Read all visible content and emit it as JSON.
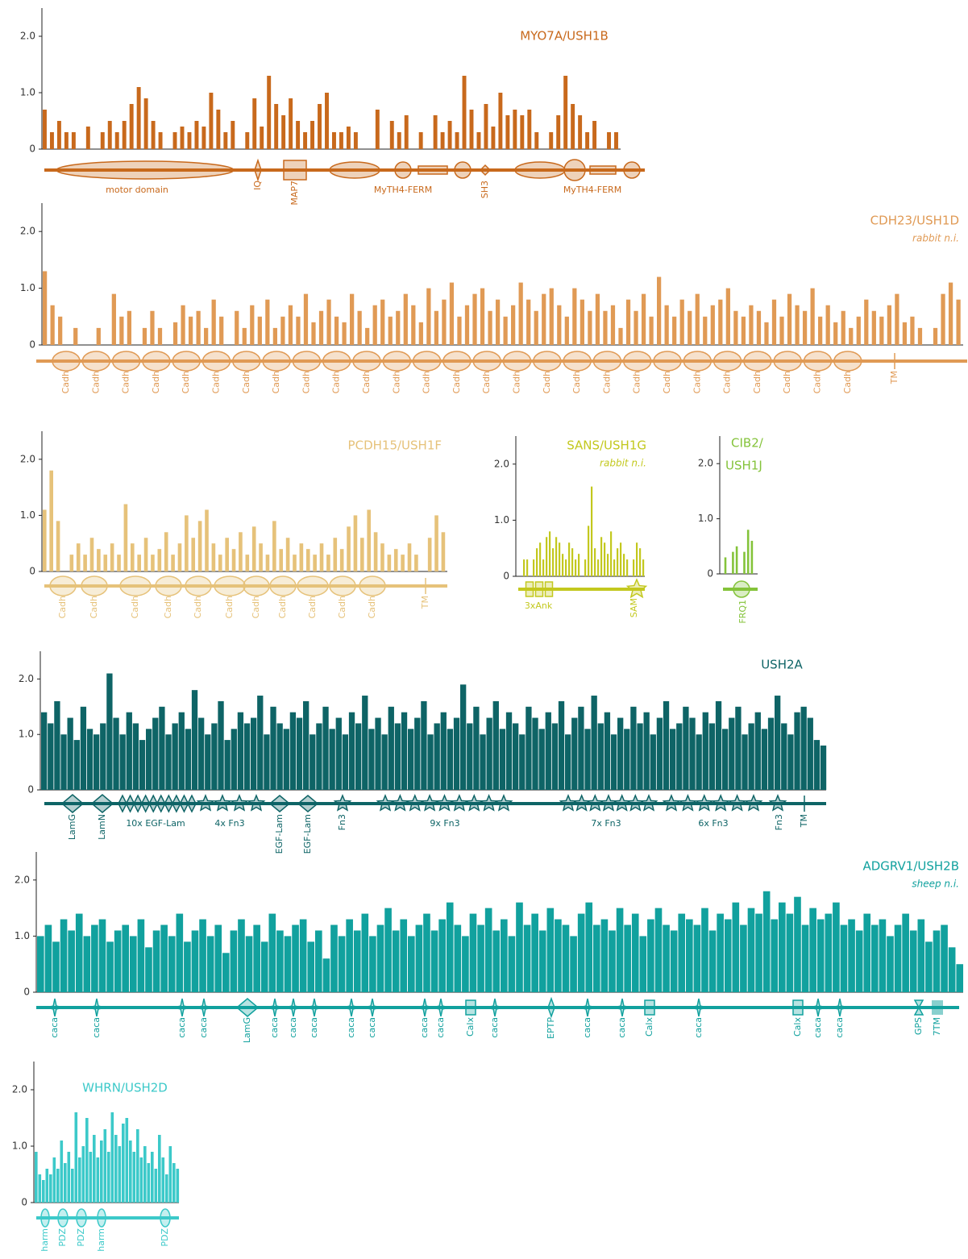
{
  "chart_data": [
    {
      "type": "bar",
      "title": "MYO7A/USH1B",
      "color": "#c8691c",
      "ylim": [
        0,
        2.5
      ],
      "yticks": [
        0,
        {
          "value": 1,
          "label": "1.0"
        },
        {
          "value": 2,
          "label": "2.0"
        }
      ],
      "values": [
        0.7,
        0.3,
        0.5,
        0.3,
        0.3,
        0,
        0.4,
        0,
        0.3,
        0.5,
        0.3,
        0.5,
        0.8,
        1.1,
        0.9,
        0.5,
        0.3,
        0,
        0.3,
        0.4,
        0.3,
        0.5,
        0.4,
        1.0,
        0.7,
        0.3,
        0.5,
        0,
        0.3,
        0.9,
        0.4,
        1.3,
        0.8,
        0.6,
        0.9,
        0.5,
        0.3,
        0.5,
        0.8,
        1.0,
        0.3,
        0.3,
        0.4,
        0.3,
        0,
        0,
        0.7,
        0,
        0.5,
        0.3,
        0.6,
        0,
        0.3,
        0,
        0.6,
        0.3,
        0.5,
        0.3,
        1.3,
        0.7,
        0.3,
        0.8,
        0.4,
        1.0,
        0.6,
        0.7,
        0.6,
        0.7,
        0.3,
        0,
        0.3,
        0.6,
        1.3,
        0.8,
        0.6,
        0.3,
        0.5,
        0,
        0.3,
        0.3
      ],
      "domains": [
        "motor domain",
        "IQ",
        "MAP7",
        "MyTH4-FERM",
        "SH3",
        "MyTH4-FERM"
      ]
    },
    {
      "type": "bar",
      "title": "CDH23/USH1D",
      "subtitle": "rabbit n.i.",
      "color": "#e09a55",
      "ylim": [
        0,
        2.5
      ],
      "yticks": [
        0,
        {
          "value": 1,
          "label": "1.0"
        },
        {
          "value": 2,
          "label": "2.0"
        }
      ],
      "values": [
        1.3,
        0.7,
        0.5,
        0,
        0.3,
        0,
        0,
        0.3,
        0,
        0.9,
        0.5,
        0.6,
        0,
        0.3,
        0.6,
        0.3,
        0,
        0.4,
        0.7,
        0.5,
        0.6,
        0.3,
        0.8,
        0.5,
        0,
        0.6,
        0.3,
        0.7,
        0.5,
        0.8,
        0.3,
        0.5,
        0.7,
        0.5,
        0.9,
        0.4,
        0.6,
        0.8,
        0.5,
        0.4,
        0.9,
        0.6,
        0.3,
        0.7,
        0.8,
        0.5,
        0.6,
        0.9,
        0.7,
        0.4,
        1.0,
        0.6,
        0.8,
        1.1,
        0.5,
        0.7,
        0.9,
        1.0,
        0.6,
        0.8,
        0.5,
        0.7,
        1.1,
        0.8,
        0.6,
        0.9,
        1.0,
        0.7,
        0.5,
        1.0,
        0.8,
        0.6,
        0.9,
        0.6,
        0.7,
        0.3,
        0.8,
        0.6,
        0.9,
        0.5,
        1.2,
        0.7,
        0.5,
        0.8,
        0.6,
        0.9,
        0.5,
        0.7,
        0.8,
        1.0,
        0.6,
        0.5,
        0.7,
        0.6,
        0.4,
        0.8,
        0.5,
        0.9,
        0.7,
        0.6,
        1.0,
        0.5,
        0.7,
        0.4,
        0.6,
        0.3,
        0.5,
        0.8,
        0.6,
        0.5,
        0.7,
        0.9,
        0.4,
        0.5,
        0.3,
        0,
        0.3,
        0.9,
        1.1,
        0.8
      ],
      "domains": [
        "Cadh",
        "Cadh",
        "Cadh",
        "Cadh",
        "Cadh",
        "Cadh",
        "Cadh",
        "Cadh",
        "Cadh",
        "Cadh",
        "Cadh",
        "Cadh",
        "Cadh",
        "Cadh",
        "Cadh",
        "Cadh",
        "Cadh",
        "Cadh",
        "Cadh",
        "Cadh",
        "Cadh",
        "Cadh",
        "Cadh",
        "Cadh",
        "Cadh",
        "Cadh",
        "Cadh",
        "TM"
      ]
    },
    {
      "type": "bar",
      "title": "PCDH15/USH1F",
      "color": "#e6c27a",
      "ylim": [
        0,
        2.5
      ],
      "yticks": [
        0,
        {
          "value": 1,
          "label": "1.0"
        },
        {
          "value": 2,
          "label": "2.0"
        }
      ],
      "values": [
        1.1,
        1.8,
        0.9,
        0,
        0.3,
        0.5,
        0.3,
        0.6,
        0.4,
        0.3,
        0.5,
        0.3,
        1.2,
        0.5,
        0.3,
        0.6,
        0.3,
        0.4,
        0.7,
        0.3,
        0.5,
        1.0,
        0.6,
        0.9,
        1.1,
        0.5,
        0.3,
        0.6,
        0.4,
        0.7,
        0.3,
        0.8,
        0.5,
        0.3,
        0.9,
        0.4,
        0.6,
        0.3,
        0.5,
        0.4,
        0.3,
        0.5,
        0.3,
        0.6,
        0.4,
        0.8,
        1.0,
        0.6,
        1.1,
        0.7,
        0.5,
        0.3,
        0.4,
        0.3,
        0.5,
        0.3,
        0,
        0.6,
        1.0,
        0.7
      ],
      "domains": [
        "Cadh",
        "Cadh",
        "Cadh",
        "Cadh",
        "Cadh",
        "Cadh",
        "Cadh",
        "Cadh",
        "Cadh",
        "Cadh",
        "Cadh",
        "TM"
      ]
    },
    {
      "type": "bar",
      "title": "SANS/USH1G",
      "subtitle": "rabbit n.i.",
      "color": "#c3c81e",
      "ylim": [
        0,
        2.5
      ],
      "yticks": [
        0,
        {
          "value": 1,
          "label": "1.0"
        },
        {
          "value": 2,
          "label": "2.0"
        }
      ],
      "values": [
        0,
        0,
        0.3,
        0.3,
        0,
        0.3,
        0.5,
        0.6,
        0.3,
        0.7,
        0.8,
        0.5,
        0.7,
        0.6,
        0.4,
        0.3,
        0.6,
        0.5,
        0.3,
        0.4,
        0,
        0.3,
        0.9,
        1.6,
        0.5,
        0.3,
        0.7,
        0.6,
        0.4,
        0.8,
        0.3,
        0.5,
        0.6,
        0.4,
        0.3,
        0,
        0.3,
        0.6,
        0.5,
        0.3
      ],
      "domains": [
        "3xAnk",
        "SAM"
      ]
    },
    {
      "type": "bar",
      "title": [
        "CIB2/",
        "USH1J"
      ],
      "color": "#84c33a",
      "ylim": [
        0,
        2.5
      ],
      "yticks": [
        0,
        {
          "value": 1,
          "label": "1.0"
        },
        {
          "value": 2,
          "label": "2.0"
        }
      ],
      "values": [
        0,
        0.3,
        0,
        0.4,
        0.5,
        0,
        0.4,
        0.8,
        0.6,
        0
      ],
      "domains": [
        "FRQ1"
      ]
    },
    {
      "type": "bar",
      "title": "USH2A",
      "color": "#0e6466",
      "ylim": [
        0,
        2.5
      ],
      "yticks": [
        0,
        {
          "value": 1,
          "label": "1.0"
        },
        {
          "value": 2,
          "label": "2.0"
        }
      ],
      "values": [
        1.4,
        1.2,
        1.6,
        1.0,
        1.3,
        0.9,
        1.5,
        1.1,
        1.0,
        1.2,
        2.1,
        1.3,
        1.0,
        1.4,
        1.2,
        0.9,
        1.1,
        1.3,
        1.5,
        1.0,
        1.2,
        1.4,
        1.1,
        1.8,
        1.3,
        1.0,
        1.2,
        1.6,
        0.9,
        1.1,
        1.4,
        1.2,
        1.3,
        1.7,
        1.0,
        1.5,
        1.2,
        1.1,
        1.4,
        1.3,
        1.6,
        1.0,
        1.2,
        1.5,
        1.1,
        1.3,
        1.0,
        1.4,
        1.2,
        1.7,
        1.1,
        1.3,
        1.0,
        1.5,
        1.2,
        1.4,
        1.1,
        1.3,
        1.6,
        1.0,
        1.2,
        1.4,
        1.1,
        1.3,
        1.9,
        1.2,
        1.5,
        1.0,
        1.3,
        1.6,
        1.1,
        1.4,
        1.2,
        1.0,
        1.5,
        1.3,
        1.1,
        1.4,
        1.2,
        1.6,
        1.0,
        1.3,
        1.5,
        1.1,
        1.7,
        1.2,
        1.4,
        1.0,
        1.3,
        1.1,
        1.5,
        1.2,
        1.4,
        1.0,
        1.3,
        1.6,
        1.1,
        1.2,
        1.5,
        1.3,
        1.0,
        1.4,
        1.2,
        1.6,
        1.1,
        1.3,
        1.5,
        1.0,
        1.2,
        1.4,
        1.1,
        1.3,
        1.7,
        1.2,
        1.0,
        1.4,
        1.5,
        1.3,
        0.9,
        0.8
      ],
      "domains": [
        "LamG",
        "LamN",
        "10x EGF-Lam",
        "4x Fn3",
        "EGF-Lam",
        "EGF-Lam",
        "Fn3",
        "9x Fn3",
        "7x Fn3",
        "6x Fn3",
        "Fn3",
        "TM"
      ]
    },
    {
      "type": "bar",
      "title": "ADGRV1/USH2B",
      "subtitle": "sheep n.i.",
      "color": "#11a19e",
      "ylim": [
        0,
        2.5
      ],
      "yticks": [
        0,
        {
          "value": 1,
          "label": "1.0"
        },
        {
          "value": 2,
          "label": "2.0"
        }
      ],
      "values": [
        1.0,
        1.2,
        0.9,
        1.3,
        1.1,
        1.4,
        1.0,
        1.2,
        1.3,
        0.9,
        1.1,
        1.2,
        1.0,
        1.3,
        0.8,
        1.1,
        1.2,
        1.0,
        1.4,
        0.9,
        1.1,
        1.3,
        1.0,
        1.2,
        0.7,
        1.1,
        1.3,
        1.0,
        1.2,
        0.9,
        1.4,
        1.1,
        1.0,
        1.2,
        1.3,
        0.9,
        1.1,
        0.6,
        1.2,
        1.0,
        1.3,
        1.1,
        1.4,
        1.0,
        1.2,
        1.5,
        1.1,
        1.3,
        1.0,
        1.2,
        1.4,
        1.1,
        1.3,
        1.6,
        1.2,
        1.0,
        1.4,
        1.2,
        1.5,
        1.1,
        1.3,
        1.0,
        1.6,
        1.2,
        1.4,
        1.1,
        1.5,
        1.3,
        1.2,
        1.0,
        1.4,
        1.6,
        1.2,
        1.3,
        1.1,
        1.5,
        1.2,
        1.4,
        1.0,
        1.3,
        1.5,
        1.2,
        1.1,
        1.4,
        1.3,
        1.2,
        1.5,
        1.1,
        1.4,
        1.3,
        1.6,
        1.2,
        1.5,
        1.4,
        1.8,
        1.3,
        1.6,
        1.4,
        1.7,
        1.2,
        1.5,
        1.3,
        1.4,
        1.6,
        1.2,
        1.3,
        1.1,
        1.4,
        1.2,
        1.3,
        1.0,
        1.2,
        1.4,
        1.1,
        1.3,
        0.9,
        1.1,
        1.2,
        0.8,
        0.5
      ],
      "domains": [
        "caca",
        "caca",
        "caca",
        "caca",
        "LamG",
        "caca",
        "caca",
        "caca",
        "caca",
        "caca",
        "caca",
        "caca",
        "Calx",
        "caca",
        "EPTP",
        "caca",
        "caca",
        "Calx",
        "caca",
        "Calx",
        "caca",
        "caca",
        "GPS",
        "7TM"
      ]
    },
    {
      "type": "bar",
      "title": "WHRN/USH2D",
      "color": "#3cc9c9",
      "ylim": [
        0,
        2.5
      ],
      "yticks": [
        0,
        {
          "value": 1,
          "label": "1.0"
        },
        {
          "value": 2,
          "label": "2.0"
        }
      ],
      "values": [
        0.9,
        0.5,
        0.4,
        0.6,
        0.5,
        0.8,
        0.6,
        1.1,
        0.7,
        0.9,
        0.6,
        1.6,
        0.8,
        1.0,
        1.5,
        0.9,
        1.2,
        0.8,
        1.1,
        1.3,
        0.9,
        1.6,
        1.2,
        1.0,
        1.4,
        1.5,
        1.1,
        0.9,
        1.3,
        0.8,
        1.0,
        0.7,
        0.9,
        0.6,
        1.2,
        0.8,
        0.5,
        1.0,
        0.7,
        0.6
      ],
      "domains": [
        "harm",
        "PDZ",
        "PDZ",
        "harm",
        "PDZ"
      ]
    }
  ]
}
